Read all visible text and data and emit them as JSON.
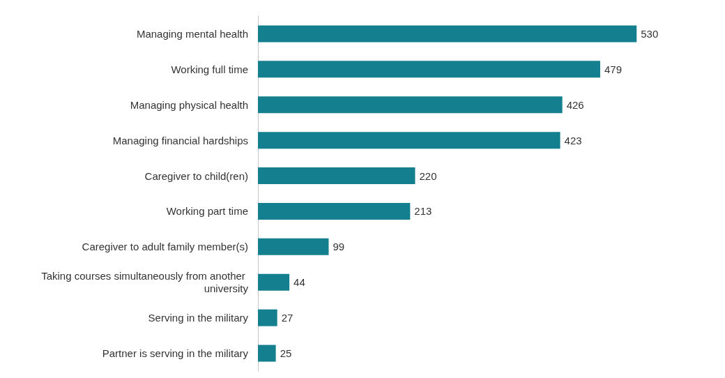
{
  "chart_data": {
    "type": "bar",
    "orientation": "horizontal",
    "categories": [
      "Managing mental health",
      "Working full time",
      "Managing physical health",
      "Managing financial hardships",
      "Caregiver to child(ren)",
      "Working part time",
      "Caregiver to adult family member(s)",
      "Taking courses simultaneously from another university",
      "Serving in the military",
      "Partner is serving in the military"
    ],
    "values": [
      530,
      479,
      426,
      423,
      220,
      213,
      99,
      44,
      27,
      25
    ],
    "color": "#137f8f",
    "data_labels": true,
    "grid": false
  }
}
